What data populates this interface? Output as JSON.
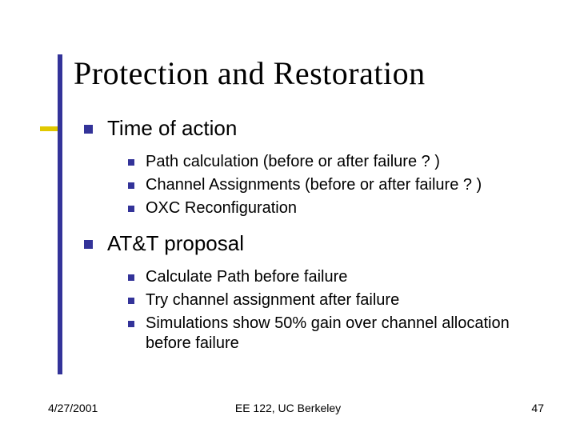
{
  "accent_bar_color": "#333399",
  "accent_notch_color": "#e1c800",
  "bullet_color": "#333399",
  "background_color": "#ffffff",
  "title": "Protection and Restoration",
  "title_fontsize": 40,
  "title_font": "Times New Roman",
  "body_font": "Verdana",
  "level1_fontsize": 26,
  "level2_fontsize": 20,
  "sections": [
    {
      "heading": "Time of action",
      "items": [
        "Path calculation (before or after failure ? )",
        "Channel Assignments (before or after failure ? )",
        "OXC Reconfiguration"
      ]
    },
    {
      "heading": "AT&T proposal",
      "items": [
        "Calculate Path before failure",
        "Try channel assignment after failure",
        "Simulations show 50% gain over channel allocation before failure"
      ]
    }
  ],
  "footer": {
    "date": "4/27/2001",
    "center": "EE 122, UC Berkeley",
    "page": "47"
  }
}
